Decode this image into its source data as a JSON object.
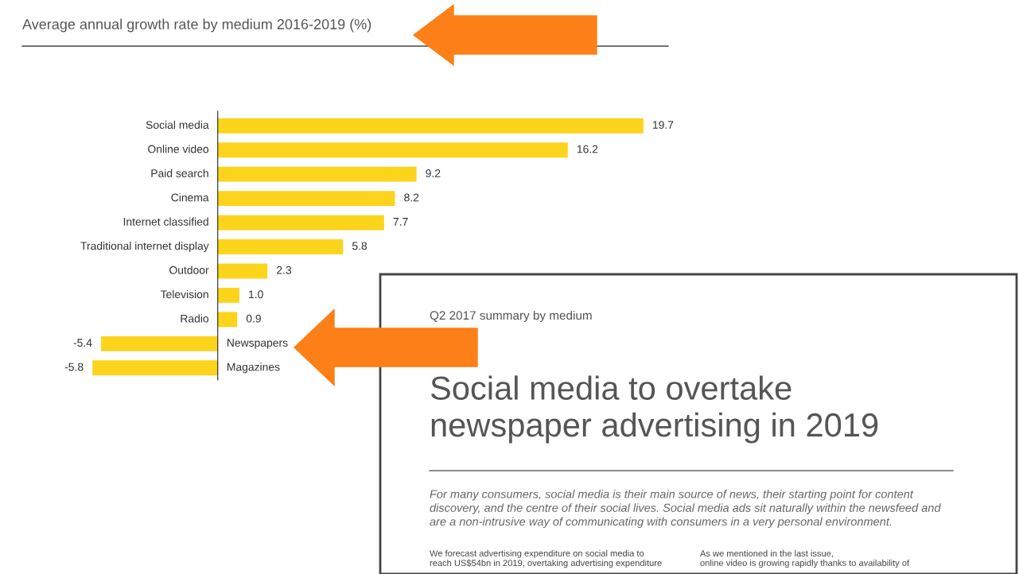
{
  "chart_data": {
    "type": "bar",
    "orientation": "horizontal",
    "title": "Average annual growth rate by medium 2016-2019 (%)",
    "categories": [
      "Social media",
      "Online video",
      "Paid search",
      "Cinema",
      "Internet classified",
      "Traditional internet display",
      "Outdoor",
      "Television",
      "Radio",
      "Newspapers",
      "Magazines"
    ],
    "values": [
      19.7,
      16.2,
      9.2,
      8.2,
      7.7,
      5.8,
      2.3,
      1.0,
      0.9,
      -5.4,
      -5.8
    ],
    "value_labels": [
      "19.7",
      "16.2",
      "9.2",
      "8.2",
      "7.7",
      "5.8",
      "2.3",
      "1.0",
      "0.9",
      "-5.4",
      "-5.8"
    ],
    "color": "#fcd41c",
    "annotations": [
      "Q2 2017 summary by medium",
      "Social media to overtake\nnewspaper advertising in 2019",
      "For many consumers, social media is their main source of news, their starting point for content\ndiscovery, and the centre of their social lives. Social media ads sit naturally within the newsfeed and\nare a non-intrusive way of communicating with consumers in a very personal environment.",
      "We forecast advertising expenditure on social media to\nreach US$54bn in 2019, overtaking advertising expenditure",
      "As we mentioned in the last issue,\nonline video is growing rapidly thanks to availability of"
    ]
  }
}
